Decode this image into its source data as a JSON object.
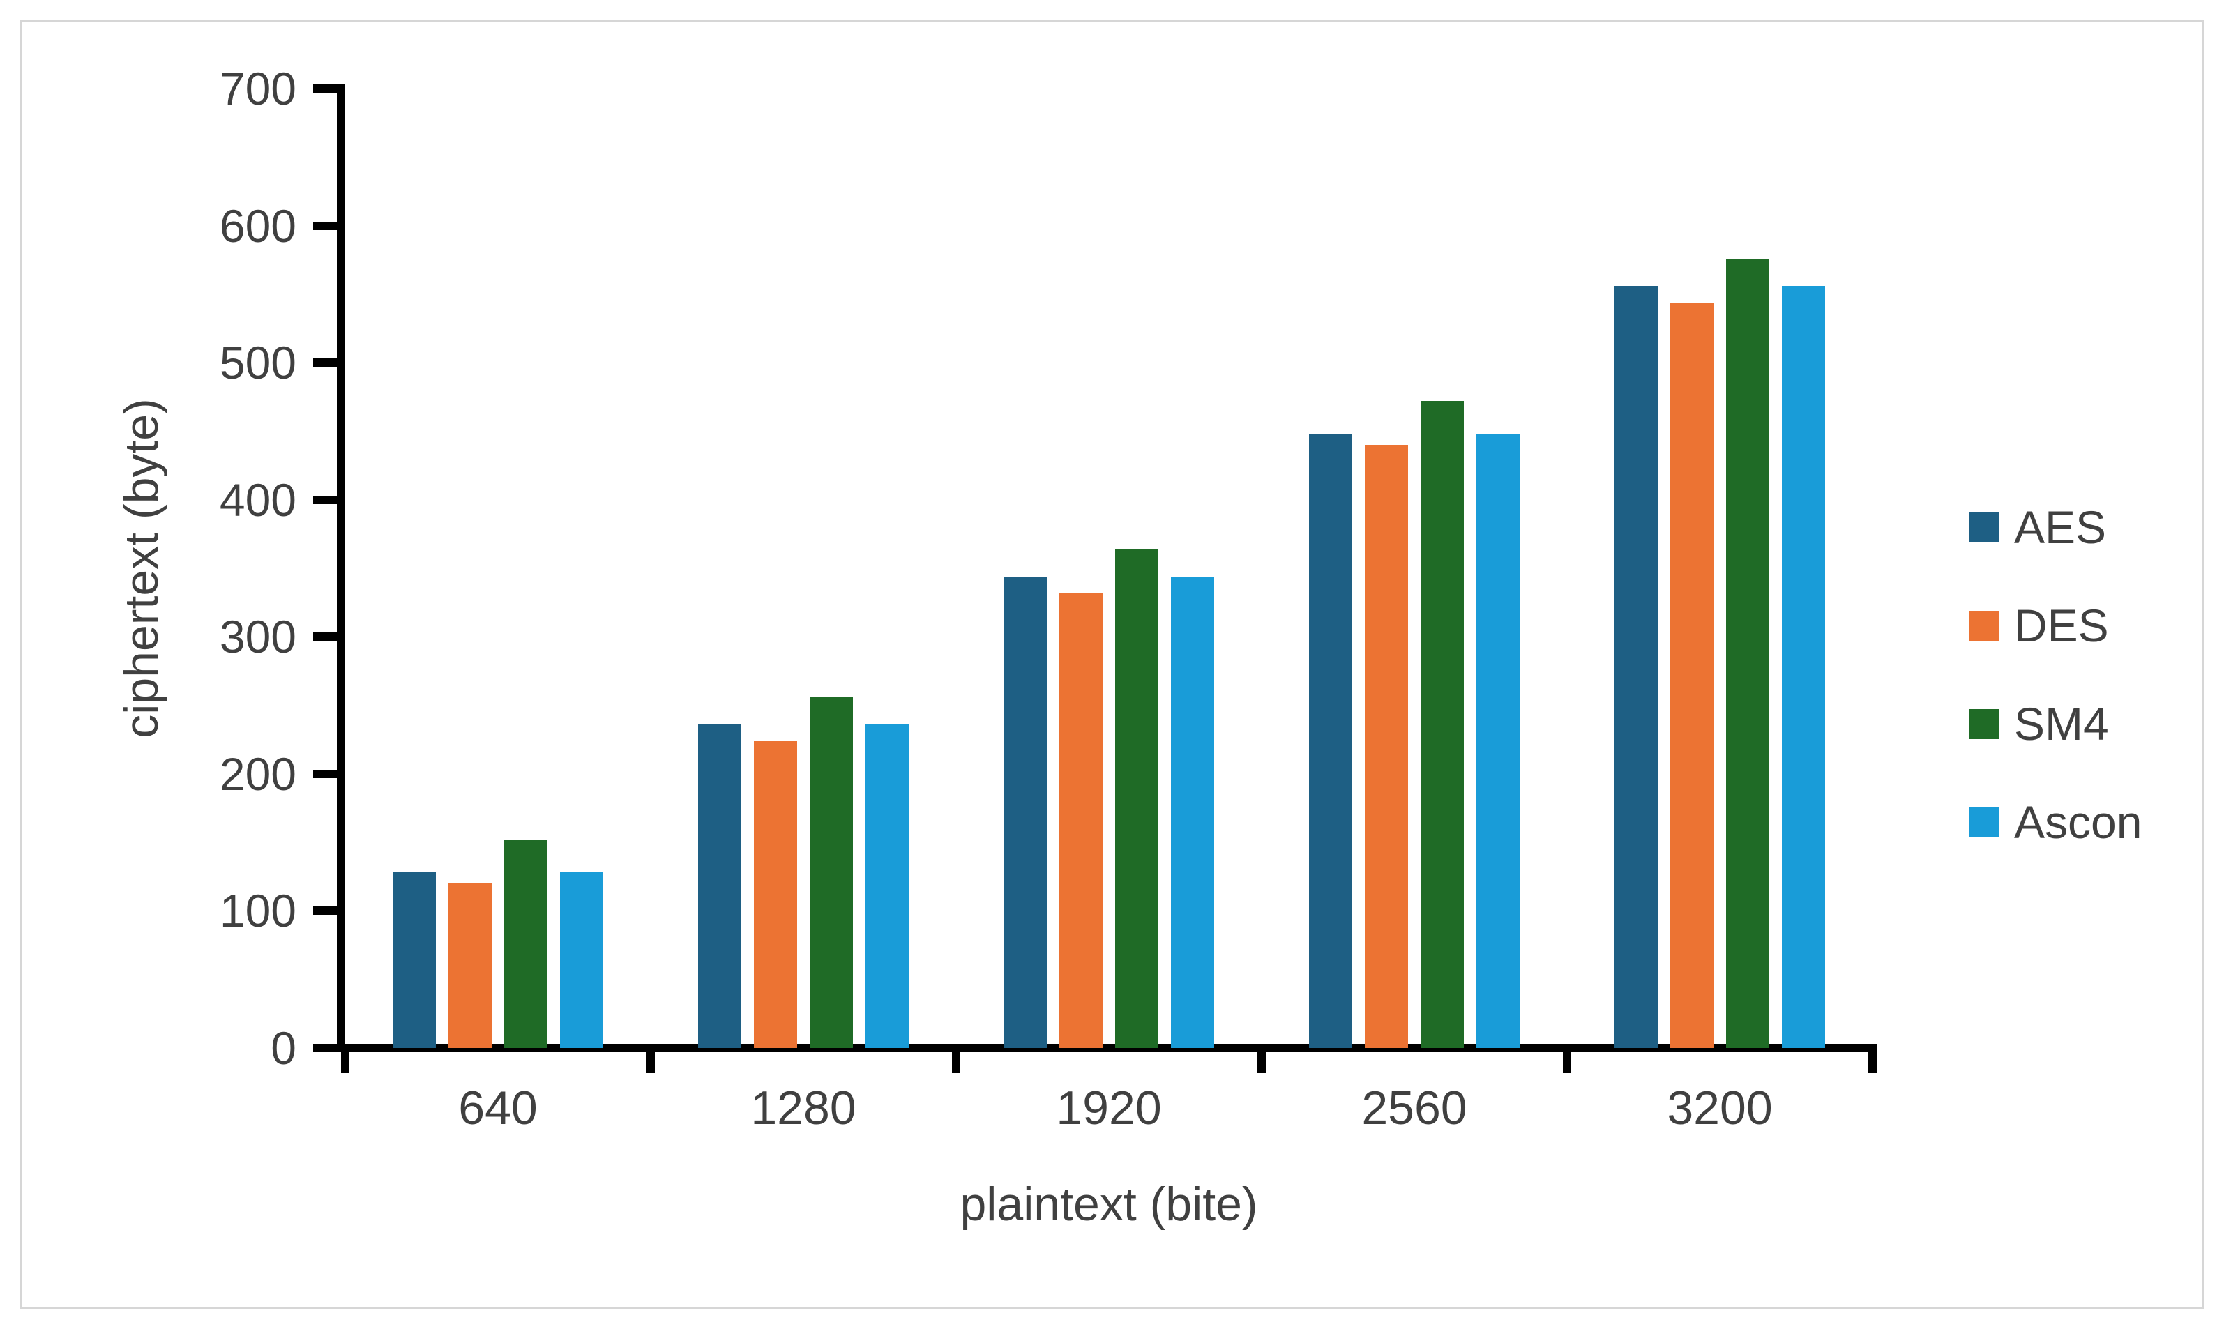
{
  "chart_data": {
    "type": "bar",
    "title": "",
    "xlabel": "plaintext (bite)",
    "ylabel": "ciphertext (byte)",
    "categories": [
      "640",
      "1280",
      "1920",
      "2560",
      "3200"
    ],
    "series": [
      {
        "name": "AES",
        "color": "#1E5F84",
        "values": [
          128,
          236,
          344,
          448,
          556
        ]
      },
      {
        "name": "DES",
        "color": "#EC7333",
        "values": [
          120,
          224,
          332,
          440,
          544
        ]
      },
      {
        "name": "SM4",
        "color": "#1F6B26",
        "values": [
          152,
          256,
          364,
          472,
          576
        ]
      },
      {
        "name": "Ascon",
        "color": "#199CD8",
        "values": [
          128,
          236,
          344,
          448,
          556
        ]
      }
    ],
    "ylim": [
      0,
      700
    ],
    "yticks": [
      0,
      100,
      200,
      300,
      400,
      500,
      600,
      700
    ],
    "grid": false,
    "legend_position": "right",
    "axis_color": "#000000",
    "text_color": "#404040",
    "frame_color": "#d6d6d6"
  }
}
